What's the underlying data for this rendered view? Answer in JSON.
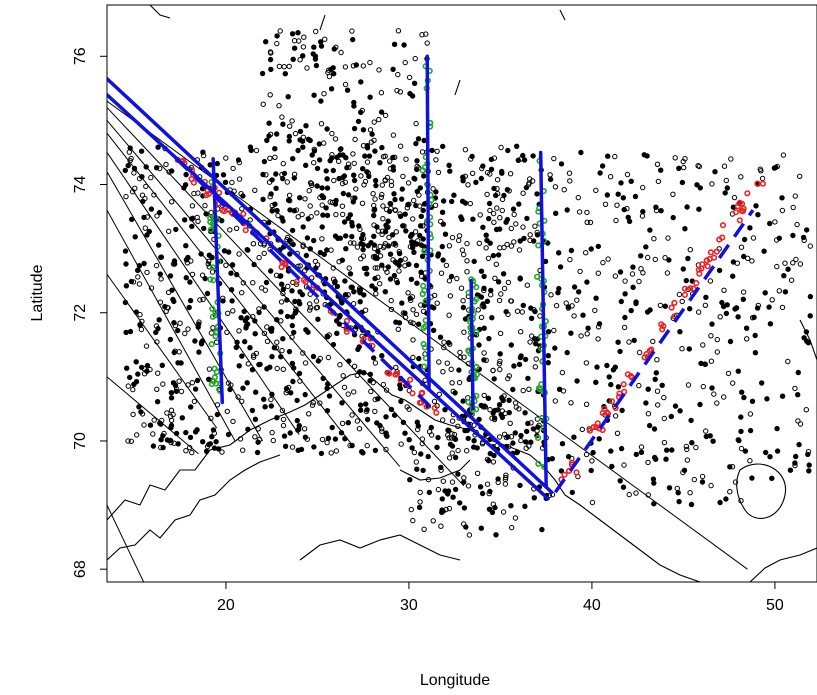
{
  "chart_data": {
    "type": "scatter",
    "title": "",
    "xlabel": "Longitude",
    "ylabel": "Latitude",
    "xlim": [
      13.5,
      52.3
    ],
    "ylim": [
      67.8,
      76.8
    ],
    "xticks": [
      20,
      30,
      40,
      50
    ],
    "yticks": [
      68,
      70,
      72,
      74,
      76
    ],
    "grid": false,
    "legend": "none",
    "colors": {
      "points": "#000000",
      "highlight_green": "#22aa22",
      "highlight_red": "#ee2222",
      "track_blue": "#1111dd",
      "coastline": "#000000"
    },
    "solid_tracks": [
      {
        "x": [
          13.5,
          37.8
        ],
        "y": [
          75.65,
          69.2
        ]
      },
      {
        "x": [
          13.5,
          37.6
        ],
        "y": [
          75.4,
          69.1
        ]
      },
      {
        "x": [
          19.3,
          19.8
        ],
        "y": [
          74.4,
          70.6
        ]
      },
      {
        "x": [
          31.0,
          31.1
        ],
        "y": [
          76.0,
          70.8
        ]
      },
      {
        "x": [
          33.4,
          33.5
        ],
        "y": [
          72.5,
          70.5
        ]
      },
      {
        "x": [
          37.2,
          37.5
        ],
        "y": [
          74.5,
          69.3
        ]
      }
    ],
    "dashed_tracks": [
      {
        "x": [
          17.3,
          31.3
        ],
        "y": [
          74.4,
          70.5
        ]
      },
      {
        "x": [
          38.0,
          48.8
        ],
        "y": [
          69.2,
          73.6
        ]
      }
    ],
    "thin_lines": [
      {
        "x": [
          13.5,
          48.5
        ],
        "y": [
          75.3,
          68.0
        ]
      },
      {
        "x": [
          13.5,
          33.0
        ],
        "y": [
          75.2,
          69.3
        ]
      },
      {
        "x": [
          13.5,
          29.5
        ],
        "y": [
          75.0,
          69.6
        ]
      },
      {
        "x": [
          13.5,
          27.0
        ],
        "y": [
          74.8,
          69.9
        ]
      },
      {
        "x": [
          13.5,
          24.0
        ],
        "y": [
          74.5,
          70.1
        ]
      },
      {
        "x": [
          13.5,
          22.0
        ],
        "y": [
          74.2,
          70.0
        ]
      },
      {
        "x": [
          13.5,
          20.5
        ],
        "y": [
          73.6,
          70.0
        ]
      },
      {
        "x": [
          13.5,
          19.5
        ],
        "y": [
          72.6,
          70.2
        ]
      },
      {
        "x": [
          13.5,
          18.5
        ],
        "y": [
          71.0,
          69.8
        ]
      },
      {
        "x": [
          13.5,
          15.5
        ],
        "y": [
          69.0,
          67.8
        ]
      }
    ],
    "point_clusters": [
      {
        "x": [
          14.5,
          37.5
        ],
        "y": [
          69.8,
          74.6
        ],
        "n": 1200
      },
      {
        "x": [
          22.0,
          31.0
        ],
        "y": [
          72.0,
          76.4
        ],
        "n": 300
      },
      {
        "x": [
          37.5,
          52.0
        ],
        "y": [
          69.0,
          74.5
        ],
        "n": 420
      },
      {
        "x": [
          30.0,
          37.5
        ],
        "y": [
          68.5,
          70.5
        ],
        "n": 120
      }
    ],
    "green_points": {
      "tracks": [
        [
          19.5,
          70.6,
          19.3,
          74.3
        ],
        [
          31.0,
          70.8,
          31.0,
          76.0
        ],
        [
          33.5,
          70.5,
          33.5,
          72.6
        ],
        [
          37.3,
          69.3,
          37.2,
          74.5
        ]
      ],
      "n": 140
    },
    "red_points": {
      "tracks": [
        [
          17.3,
          74.4,
          31.3,
          70.5
        ],
        [
          38.0,
          69.2,
          49.2,
          74.1
        ]
      ],
      "n": 130
    }
  }
}
